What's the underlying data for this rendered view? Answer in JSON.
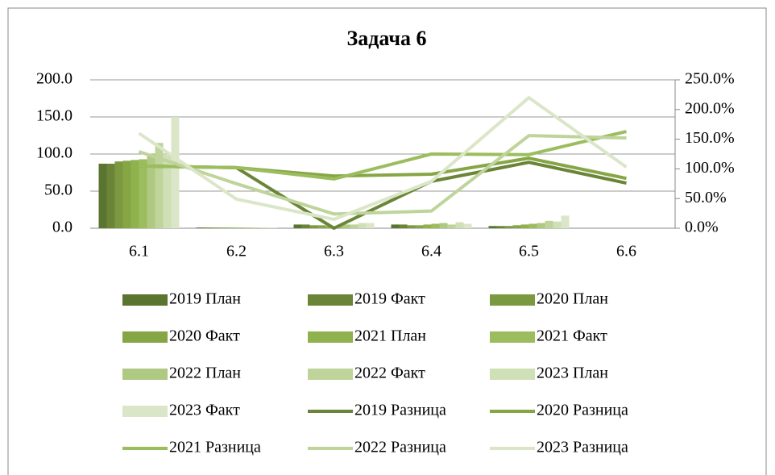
{
  "chart_data": {
    "type": "bar",
    "title": "Задача 6",
    "categories": [
      "6.1",
      "6.2",
      "6.3",
      "6.4",
      "6.5",
      "6.6"
    ],
    "ylim": [
      0,
      200
    ],
    "yticks": [
      {
        "value": 0,
        "label": "0.0"
      },
      {
        "value": 50,
        "label": "50.0"
      },
      {
        "value": 100,
        "label": "100.0"
      },
      {
        "value": 150,
        "label": "150.0"
      },
      {
        "value": 200,
        "label": "200.0"
      }
    ],
    "y2lim": [
      0,
      250
    ],
    "y2ticks": [
      {
        "value": 0,
        "label": "0.0%"
      },
      {
        "value": 50,
        "label": "50.0%"
      },
      {
        "value": 100,
        "label": "100.0%"
      },
      {
        "value": 150,
        "label": "150.0%"
      },
      {
        "value": 200,
        "label": "200.0%"
      },
      {
        "value": 250,
        "label": "250.0%"
      }
    ],
    "grid": true,
    "legend": "bottom",
    "series": [
      {
        "name": "2019 План",
        "color": "#5a7530",
        "values": [
          87,
          1,
          5,
          5,
          3,
          0
        ]
      },
      {
        "name": "2019 Факт",
        "color": "#6a8538",
        "values": [
          87,
          1,
          5,
          5,
          3,
          0
        ]
      },
      {
        "name": "2020 План",
        "color": "#7a9940",
        "values": [
          90,
          1,
          4,
          4,
          3,
          0
        ]
      },
      {
        "name": "2020 Факт",
        "color": "#86a646",
        "values": [
          91,
          1,
          4,
          4,
          4,
          0
        ]
      },
      {
        "name": "2021 План",
        "color": "#8fb24e",
        "values": [
          92,
          1,
          3,
          5,
          5,
          0
        ]
      },
      {
        "name": "2021 Факт",
        "color": "#9cbd5e",
        "values": [
          93,
          1,
          3,
          6,
          6,
          0
        ]
      },
      {
        "name": "2022 План",
        "color": "#afc882",
        "values": [
          100,
          1,
          5,
          7,
          7,
          0
        ]
      },
      {
        "name": "2022 Факт",
        "color": "#bfd49b",
        "values": [
          115,
          1,
          5,
          5,
          10,
          0
        ]
      },
      {
        "name": "2023 План",
        "color": "#cfdfb6",
        "values": [
          100,
          1,
          7,
          8,
          9,
          0
        ]
      },
      {
        "name": "2023 Факт",
        "color": "#dbe6c8",
        "values": [
          150,
          1,
          7,
          6,
          17,
          0
        ]
      },
      {
        "name": "2019 Разница",
        "color": "#6a8538",
        "type": "line",
        "axis": "y2",
        "values": [
          105,
          102,
          0,
          79,
          111,
          76
        ]
      },
      {
        "name": "2020 Разница",
        "color": "#86a646",
        "type": "line",
        "axis": "y2",
        "values": [
          105,
          102,
          88,
          91,
          118,
          84
        ]
      },
      {
        "name": "2021 Разница",
        "color": "#9cbd5e",
        "type": "line",
        "axis": "y2",
        "values": [
          105,
          102,
          83,
          125,
          124,
          163
        ]
      },
      {
        "name": "2022 Разница",
        "color": "#bfd49b",
        "type": "line",
        "axis": "y2",
        "values": [
          129,
          75,
          24,
          29,
          156,
          152
        ]
      },
      {
        "name": "2023 Разница",
        "color": "#dbe6c8",
        "type": "line",
        "axis": "y2",
        "values": [
          160,
          49,
          15,
          79,
          220,
          103
        ]
      }
    ]
  }
}
